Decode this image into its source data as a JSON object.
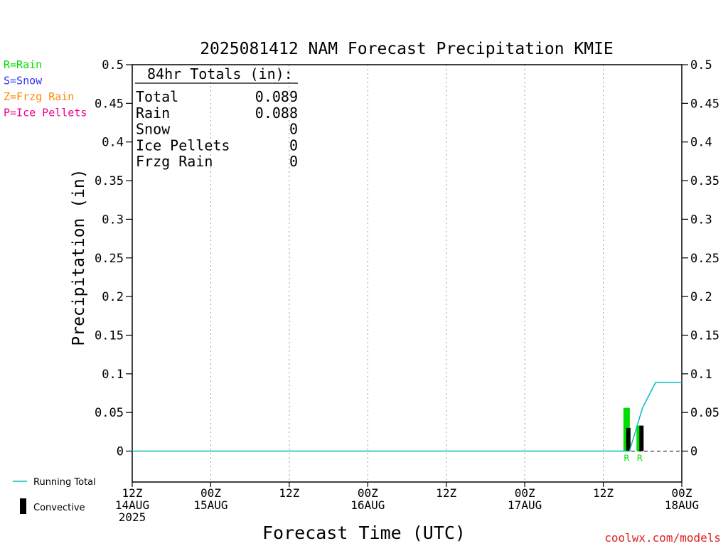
{
  "chart_data": {
    "type": "bar",
    "title": "2025081412 NAM Forecast Precipitation KMIE",
    "ylabel": "Precipitation (in)",
    "xlabel": "Forecast Time (UTC)",
    "ylim": [
      -0.04,
      0.5
    ],
    "y_ticks": [
      "0",
      "0.05",
      "0.1",
      "0.15",
      "0.2",
      "0.25",
      "0.3",
      "0.35",
      "0.4",
      "0.45",
      "0.5"
    ],
    "y_tick_values": [
      0,
      0.05,
      0.1,
      0.15,
      0.2,
      0.25,
      0.3,
      0.35,
      0.4,
      0.45,
      0.5
    ],
    "x_range_hours": [
      0,
      84
    ],
    "x_ticks": [
      {
        "hour": 0,
        "line1": "12Z",
        "line2": "14AUG",
        "line3": "2025"
      },
      {
        "hour": 12,
        "line1": "00Z",
        "line2": "15AUG",
        "line3": ""
      },
      {
        "hour": 24,
        "line1": "12Z",
        "line2": "",
        "line3": ""
      },
      {
        "hour": 36,
        "line1": "00Z",
        "line2": "16AUG",
        "line3": ""
      },
      {
        "hour": 48,
        "line1": "12Z",
        "line2": "",
        "line3": ""
      },
      {
        "hour": 60,
        "line1": "00Z",
        "line2": "17AUG",
        "line3": ""
      },
      {
        "hour": 72,
        "line1": "12Z",
        "line2": "",
        "line3": ""
      },
      {
        "hour": 84,
        "line1": "00Z",
        "line2": "18AUG",
        "line3": ""
      }
    ],
    "grid": "vertical dotted",
    "precip_type_key": [
      {
        "label": "R=Rain",
        "color": "#00dd00"
      },
      {
        "label": "S=Snow",
        "color": "#3333ff"
      },
      {
        "label": "Z=Frzg Rain",
        "color": "#ff8800"
      },
      {
        "label": "P=Ice Pellets",
        "color": "#ee0088"
      }
    ],
    "totals": {
      "heading": "84hr Totals (in):",
      "rows": [
        {
          "label": "Total",
          "value": "0.089"
        },
        {
          "label": "Rain",
          "value": "0.088"
        },
        {
          "label": "Snow",
          "value": "0"
        },
        {
          "label": "Ice Pellets",
          "value": "0"
        },
        {
          "label": "Frzg Rain",
          "value": "0"
        }
      ]
    },
    "series": [
      {
        "name": "Precipitation (Rain)",
        "color": "#00dd00",
        "bars": [
          {
            "hour": 76,
            "value": 0.056,
            "type_label": "R"
          },
          {
            "hour": 78,
            "value": 0.033,
            "type_label": "R"
          }
        ]
      },
      {
        "name": "Convective",
        "color": "#000000",
        "bars": [
          {
            "hour": 76,
            "value": 0.03
          },
          {
            "hour": 78,
            "value": 0.033
          }
        ]
      },
      {
        "name": "Running Total",
        "color": "#00bbbb",
        "points": [
          [
            0,
            0
          ],
          [
            76,
            0
          ],
          [
            78,
            0.056
          ],
          [
            80,
            0.089
          ],
          [
            84,
            0.089
          ]
        ]
      }
    ],
    "legend": [
      {
        "label": "Running Total",
        "color": "#00bbbb",
        "kind": "line"
      },
      {
        "label": "Convective",
        "color": "#000000",
        "kind": "bar"
      }
    ],
    "credit": "coolwx.com/models"
  }
}
